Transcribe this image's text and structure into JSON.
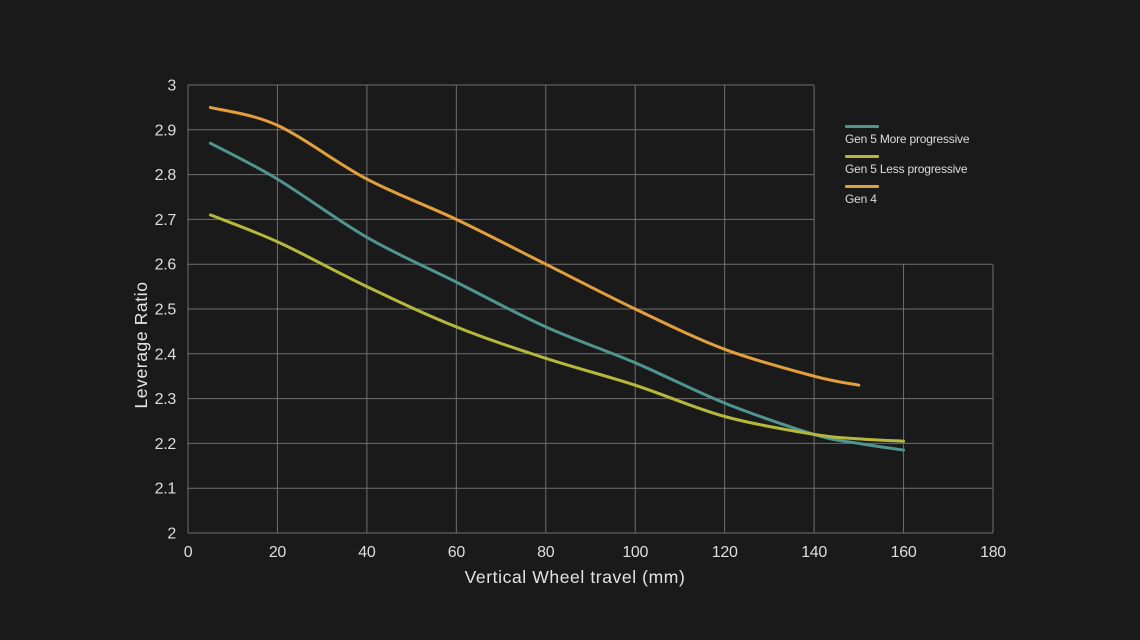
{
  "chart_data": {
    "type": "line",
    "title": "",
    "xlabel": "Vertical Wheel travel (mm)",
    "ylabel": "Leverage Ratio",
    "xlim": [
      0,
      180
    ],
    "ylim": [
      2.0,
      3.0
    ],
    "x_ticks": [
      0,
      20,
      40,
      60,
      80,
      100,
      120,
      140,
      160,
      180
    ],
    "x_tick_labels": [
      "0",
      "20",
      "40",
      "60",
      "80",
      "100",
      "120",
      "140",
      "160",
      "180"
    ],
    "y_ticks": [
      2.0,
      2.1,
      2.2,
      2.3,
      2.4,
      2.5,
      2.6,
      2.7,
      2.8,
      2.9,
      3.0
    ],
    "y_tick_labels": [
      "2",
      "2.1",
      "2.2",
      "2.3",
      "2.4",
      "2.5",
      "2.6",
      "2.7",
      "2.8",
      "2.9",
      "3"
    ],
    "grid": true,
    "legend_position": "top-right, inside grid notch",
    "grid_notch": {
      "description": "gridlines absent above y=2.6 to the right of x=140 where the legend sits",
      "x_min": 140,
      "y_min": 2.6
    },
    "series": [
      {
        "name": "Gen 5 More progressive",
        "color": "#4f948f",
        "points": [
          [
            5,
            2.87
          ],
          [
            20,
            2.79
          ],
          [
            40,
            2.66
          ],
          [
            60,
            2.56
          ],
          [
            80,
            2.46
          ],
          [
            100,
            2.38
          ],
          [
            120,
            2.29
          ],
          [
            140,
            2.22
          ],
          [
            150,
            2.2
          ],
          [
            160,
            2.185
          ]
        ]
      },
      {
        "name": "Gen 5 Less progressive",
        "color": "#b5b83b",
        "points": [
          [
            5,
            2.71
          ],
          [
            20,
            2.65
          ],
          [
            40,
            2.55
          ],
          [
            60,
            2.46
          ],
          [
            80,
            2.39
          ],
          [
            100,
            2.33
          ],
          [
            120,
            2.26
          ],
          [
            140,
            2.22
          ],
          [
            150,
            2.21
          ],
          [
            160,
            2.205
          ]
        ]
      },
      {
        "name": "Gen 4",
        "color": "#e29f3c",
        "points": [
          [
            5,
            2.95
          ],
          [
            20,
            2.91
          ],
          [
            40,
            2.79
          ],
          [
            60,
            2.7
          ],
          [
            80,
            2.6
          ],
          [
            100,
            2.5
          ],
          [
            120,
            2.41
          ],
          [
            140,
            2.35
          ],
          [
            150,
            2.33
          ]
        ]
      }
    ],
    "colors": {
      "background": "#1a1a1a",
      "grid": "#6f6f6f",
      "text": "#dedede"
    }
  }
}
